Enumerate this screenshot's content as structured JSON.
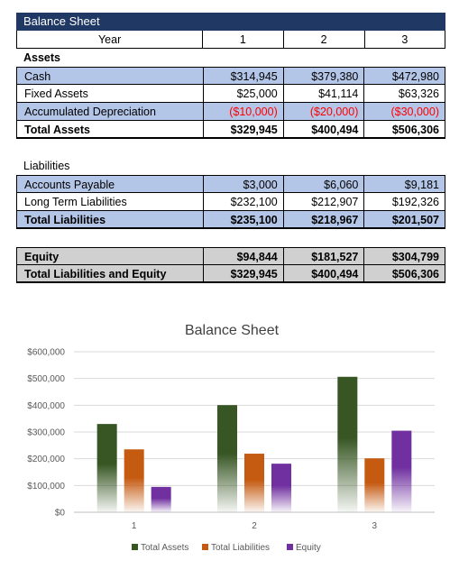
{
  "sheet": {
    "title": "Balance Sheet",
    "header": {
      "label": "Year",
      "years": [
        "1",
        "2",
        "3"
      ]
    },
    "assets_label": "Assets",
    "assets": [
      {
        "label": "Cash",
        "values": [
          "$314,945",
          "$379,380",
          "$472,980"
        ]
      },
      {
        "label": "Fixed Assets",
        "values": [
          "$25,000",
          "$41,114",
          "$63,326"
        ]
      },
      {
        "label": "Accumulated Depreciation",
        "values": [
          "($10,000)",
          "($20,000)",
          "($30,000)"
        ]
      }
    ],
    "total_assets": {
      "label": "Total Assets",
      "values": [
        "$329,945",
        "$400,494",
        "$506,306"
      ]
    },
    "liabilities_label": "Liabilities",
    "liabilities": [
      {
        "label": "Accounts Payable",
        "values": [
          "$3,000",
          "$6,060",
          "$9,181"
        ]
      },
      {
        "label": "Long Term Liabilities",
        "values": [
          "$232,100",
          "$212,907",
          "$192,326"
        ]
      }
    ],
    "total_liabilities": {
      "label": "Total Liabilities",
      "values": [
        "$235,100",
        "$218,967",
        "$201,507"
      ]
    },
    "equity": {
      "label": "Equity",
      "values": [
        "$94,844",
        "$181,527",
        "$304,799"
      ]
    },
    "total_le": {
      "label": "Total Liabilities and Equity",
      "values": [
        "$329,945",
        "$400,494",
        "$506,306"
      ]
    }
  },
  "colors": {
    "title_bar": "#1f3864",
    "row_blue": "#b4c6e7",
    "row_gray": "#d0d0d0",
    "negative": "#ff0000"
  },
  "chart_data": {
    "type": "bar",
    "title": "Balance Sheet",
    "categories": [
      "1",
      "2",
      "3"
    ],
    "series": [
      {
        "name": "Total Assets",
        "values": [
          329945,
          400494,
          506306
        ],
        "color": "#375623"
      },
      {
        "name": "Total Liabilities",
        "values": [
          235100,
          218967,
          201507
        ],
        "color": "#c55a11"
      },
      {
        "name": "Equity",
        "values": [
          94844,
          181527,
          304799
        ],
        "color": "#7030a0"
      }
    ],
    "ylim": [
      0,
      600000
    ],
    "yticks": [
      "$0",
      "$100,000",
      "$200,000",
      "$300,000",
      "$400,000",
      "$500,000",
      "$600,000"
    ],
    "grid": true,
    "legend": "bottom"
  }
}
